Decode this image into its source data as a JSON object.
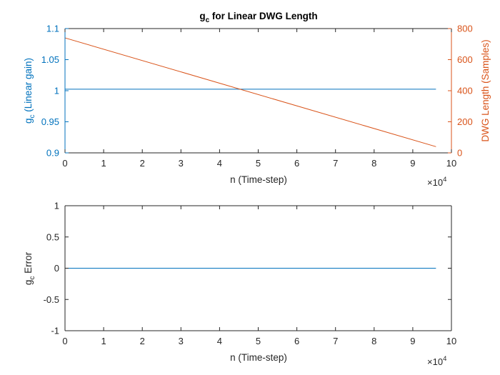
{
  "chart_data": [
    {
      "type": "line",
      "title": "g",
      "title_subscript": "c",
      "title_rest": " for Linear DWG Length",
      "xlabel": "n (Time-step)",
      "x_multiplier": "×10",
      "x_multiplier_exp": "4",
      "xlim": [
        0,
        10
      ],
      "xticks": [
        0,
        1,
        2,
        3,
        4,
        5,
        6,
        7,
        8,
        9,
        10
      ],
      "ylabel_left_main": "g",
      "ylabel_left_sub": "c",
      "ylabel_left_rest": " (Linear gain)",
      "ylim_left": [
        0.9,
        1.1
      ],
      "yticks_left": [
        "0.9",
        "0.95",
        "1",
        "1.05",
        "1.1"
      ],
      "ylabel_right": "DWG Length (Samples)",
      "ylim_right": [
        0,
        800
      ],
      "yticks_right": [
        "0",
        "200",
        "400",
        "600",
        "800"
      ],
      "grid": false,
      "colors": {
        "left": "#0072BD",
        "right": "#D95319"
      },
      "series": [
        {
          "axis": "left",
          "x": [
            0,
            9.6
          ],
          "y": [
            1.0025,
            1.0025
          ]
        },
        {
          "axis": "right",
          "x": [
            0,
            9.6
          ],
          "y": [
            740,
            40
          ]
        }
      ]
    },
    {
      "type": "line",
      "title": "",
      "xlabel": "n (Time-step)",
      "x_multiplier": "×10",
      "x_multiplier_exp": "4",
      "xlim": [
        0,
        10
      ],
      "xticks": [
        0,
        1,
        2,
        3,
        4,
        5,
        6,
        7,
        8,
        9,
        10
      ],
      "ylabel_main": "g",
      "ylabel_sub": "c",
      "ylabel_rest": " Error",
      "ylim": [
        -1,
        1
      ],
      "yticks": [
        "-1",
        "-0.5",
        "0",
        "0.5",
        "1"
      ],
      "grid": false,
      "colors": {
        "line": "#0072BD"
      },
      "series": [
        {
          "x": [
            0,
            9.6
          ],
          "y": [
            0,
            0
          ]
        }
      ]
    }
  ]
}
